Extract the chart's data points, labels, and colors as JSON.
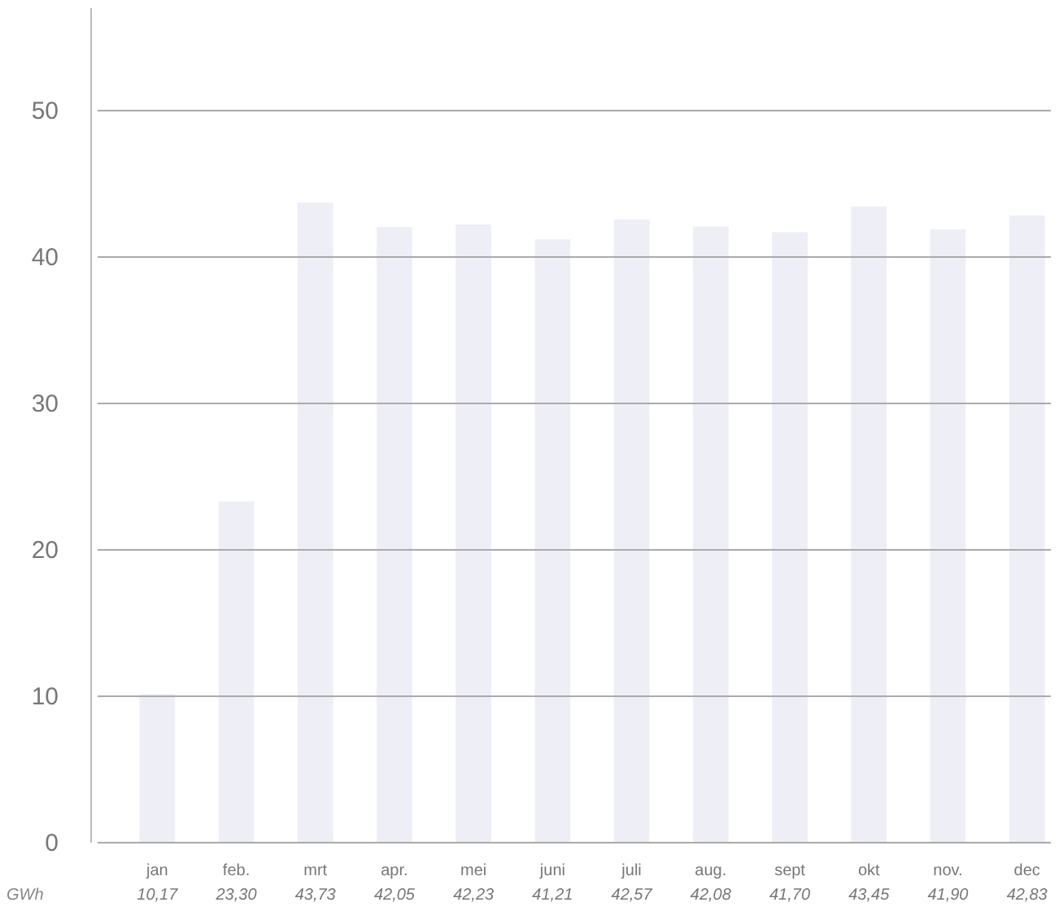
{
  "chart_data": {
    "type": "bar",
    "ylabel": "GWh",
    "categories": [
      "jan",
      "feb.",
      "mrt",
      "apr.",
      "mei",
      "juni",
      "juli",
      "aug.",
      "sept",
      "okt",
      "nov.",
      "dec"
    ],
    "values": [
      10.17,
      23.3,
      43.73,
      42.05,
      42.23,
      41.21,
      42.57,
      42.08,
      41.7,
      43.45,
      41.9,
      42.83
    ],
    "value_labels": [
      "10,17",
      "23,30",
      "43,73",
      "42,05",
      "42,23",
      "41,21",
      "42,57",
      "42,08",
      "41,70",
      "43,45",
      "41,90",
      "42,83"
    ],
    "color": "#eeeef7",
    "ylim": [
      0,
      57
    ],
    "yticks": [
      0,
      10,
      20,
      30,
      40,
      50
    ],
    "grid": "y"
  }
}
